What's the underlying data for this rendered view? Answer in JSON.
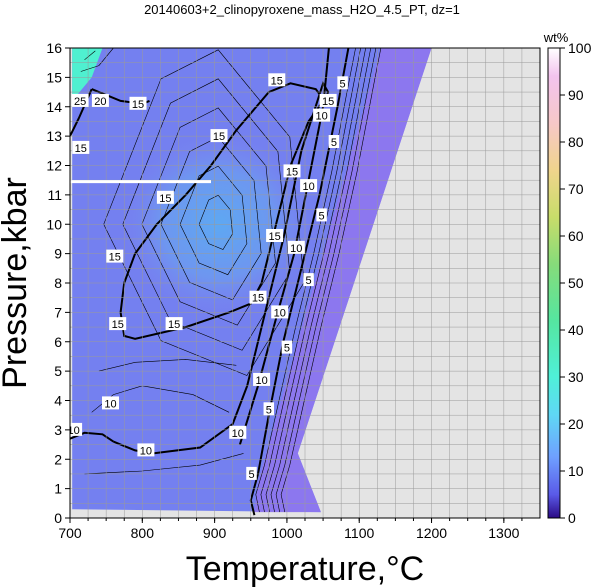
{
  "chart_data": {
    "type": "heatmap",
    "title": "20140603+2_clinopyroxene_mass_H2O_4.5_PT, dz=1",
    "xlabel": "Temperature,°C",
    "ylabel": "Pressure,kbar",
    "xlim": [
      700,
      1350
    ],
    "ylim": [
      0,
      16
    ],
    "x_ticks": [
      "700",
      "800",
      "900",
      "1000",
      "1100",
      "1200",
      "1300"
    ],
    "y_ticks": [
      "0",
      "1",
      "2",
      "3",
      "4",
      "5",
      "6",
      "7",
      "8",
      "9",
      "10",
      "11",
      "12",
      "13",
      "14",
      "15",
      "16"
    ],
    "grid": true,
    "colorbar": {
      "title": "wt%",
      "range": [
        0,
        100
      ],
      "ticks": [
        "0",
        "10",
        "20",
        "30",
        "40",
        "50",
        "60",
        "70",
        "80",
        "90",
        "100"
      ]
    },
    "contour_labels": [
      {
        "text": "5",
        "x": 1077,
        "y": 14.8
      },
      {
        "text": "5",
        "x": 1065,
        "y": 12.8
      },
      {
        "text": "5",
        "x": 1048,
        "y": 10.3
      },
      {
        "text": "5",
        "x": 1030,
        "y": 8.1
      },
      {
        "text": "5",
        "x": 1000,
        "y": 5.8
      },
      {
        "text": "5",
        "x": 975,
        "y": 3.7
      },
      {
        "text": "5",
        "x": 951,
        "y": 1.5
      },
      {
        "text": "10",
        "x": 1048,
        "y": 13.7
      },
      {
        "text": "10",
        "x": 1030,
        "y": 11.3
      },
      {
        "text": "10",
        "x": 1013,
        "y": 9.2
      },
      {
        "text": "10",
        "x": 990,
        "y": 7.0
      },
      {
        "text": "10",
        "x": 965,
        "y": 4.7
      },
      {
        "text": "10",
        "x": 932,
        "y": 2.9
      },
      {
        "text": "10",
        "x": 805,
        "y": 2.3
      },
      {
        "text": "10",
        "x": 756,
        "y": 3.9
      },
      {
        "text": "10",
        "x": 705,
        "y": 3.0
      },
      {
        "text": "15",
        "x": 1057,
        "y": 14.2
      },
      {
        "text": "15",
        "x": 1007,
        "y": 11.8
      },
      {
        "text": "15",
        "x": 983,
        "y": 9.6
      },
      {
        "text": "15",
        "x": 960,
        "y": 7.5
      },
      {
        "text": "15",
        "x": 844,
        "y": 6.6
      },
      {
        "text": "15",
        "x": 766,
        "y": 6.6
      },
      {
        "text": "15",
        "x": 762,
        "y": 8.9
      },
      {
        "text": "15",
        "x": 832,
        "y": 10.9
      },
      {
        "text": "15",
        "x": 906,
        "y": 13.0
      },
      {
        "text": "15",
        "x": 986,
        "y": 14.9
      },
      {
        "text": "15",
        "x": 794,
        "y": 14.1
      },
      {
        "text": "15",
        "x": 715,
        "y": 12.6
      },
      {
        "text": "20",
        "x": 742,
        "y": 14.2
      },
      {
        "text": "25",
        "x": 714,
        "y": 14.2
      }
    ],
    "stable_region_boundary": [
      [
        703,
        0.3
      ],
      [
        1047,
        0.2
      ],
      [
        1015,
        2.2
      ],
      [
        1200,
        16
      ],
      [
        703,
        16
      ]
    ]
  }
}
